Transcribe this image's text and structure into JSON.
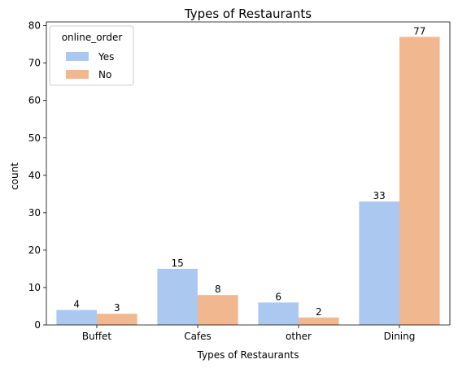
{
  "chart_data": {
    "type": "bar",
    "title": "Types of Restaurants",
    "xlabel": "Types of Restaurants",
    "ylabel": "count",
    "categories": [
      "Buffet",
      "Cafes",
      "other",
      "Dining"
    ],
    "series": [
      {
        "name": "Yes",
        "values": [
          4,
          15,
          6,
          33
        ],
        "color": "#abc9f0"
      },
      {
        "name": "No",
        "values": [
          3,
          8,
          2,
          77
        ],
        "color": "#f1b88f"
      }
    ],
    "ylim": [
      0,
      81
    ],
    "yticks": [
      0,
      10,
      20,
      30,
      40,
      50,
      60,
      70,
      80
    ],
    "legend": {
      "title": "online_order",
      "position": "top-left"
    },
    "grid": false
  }
}
